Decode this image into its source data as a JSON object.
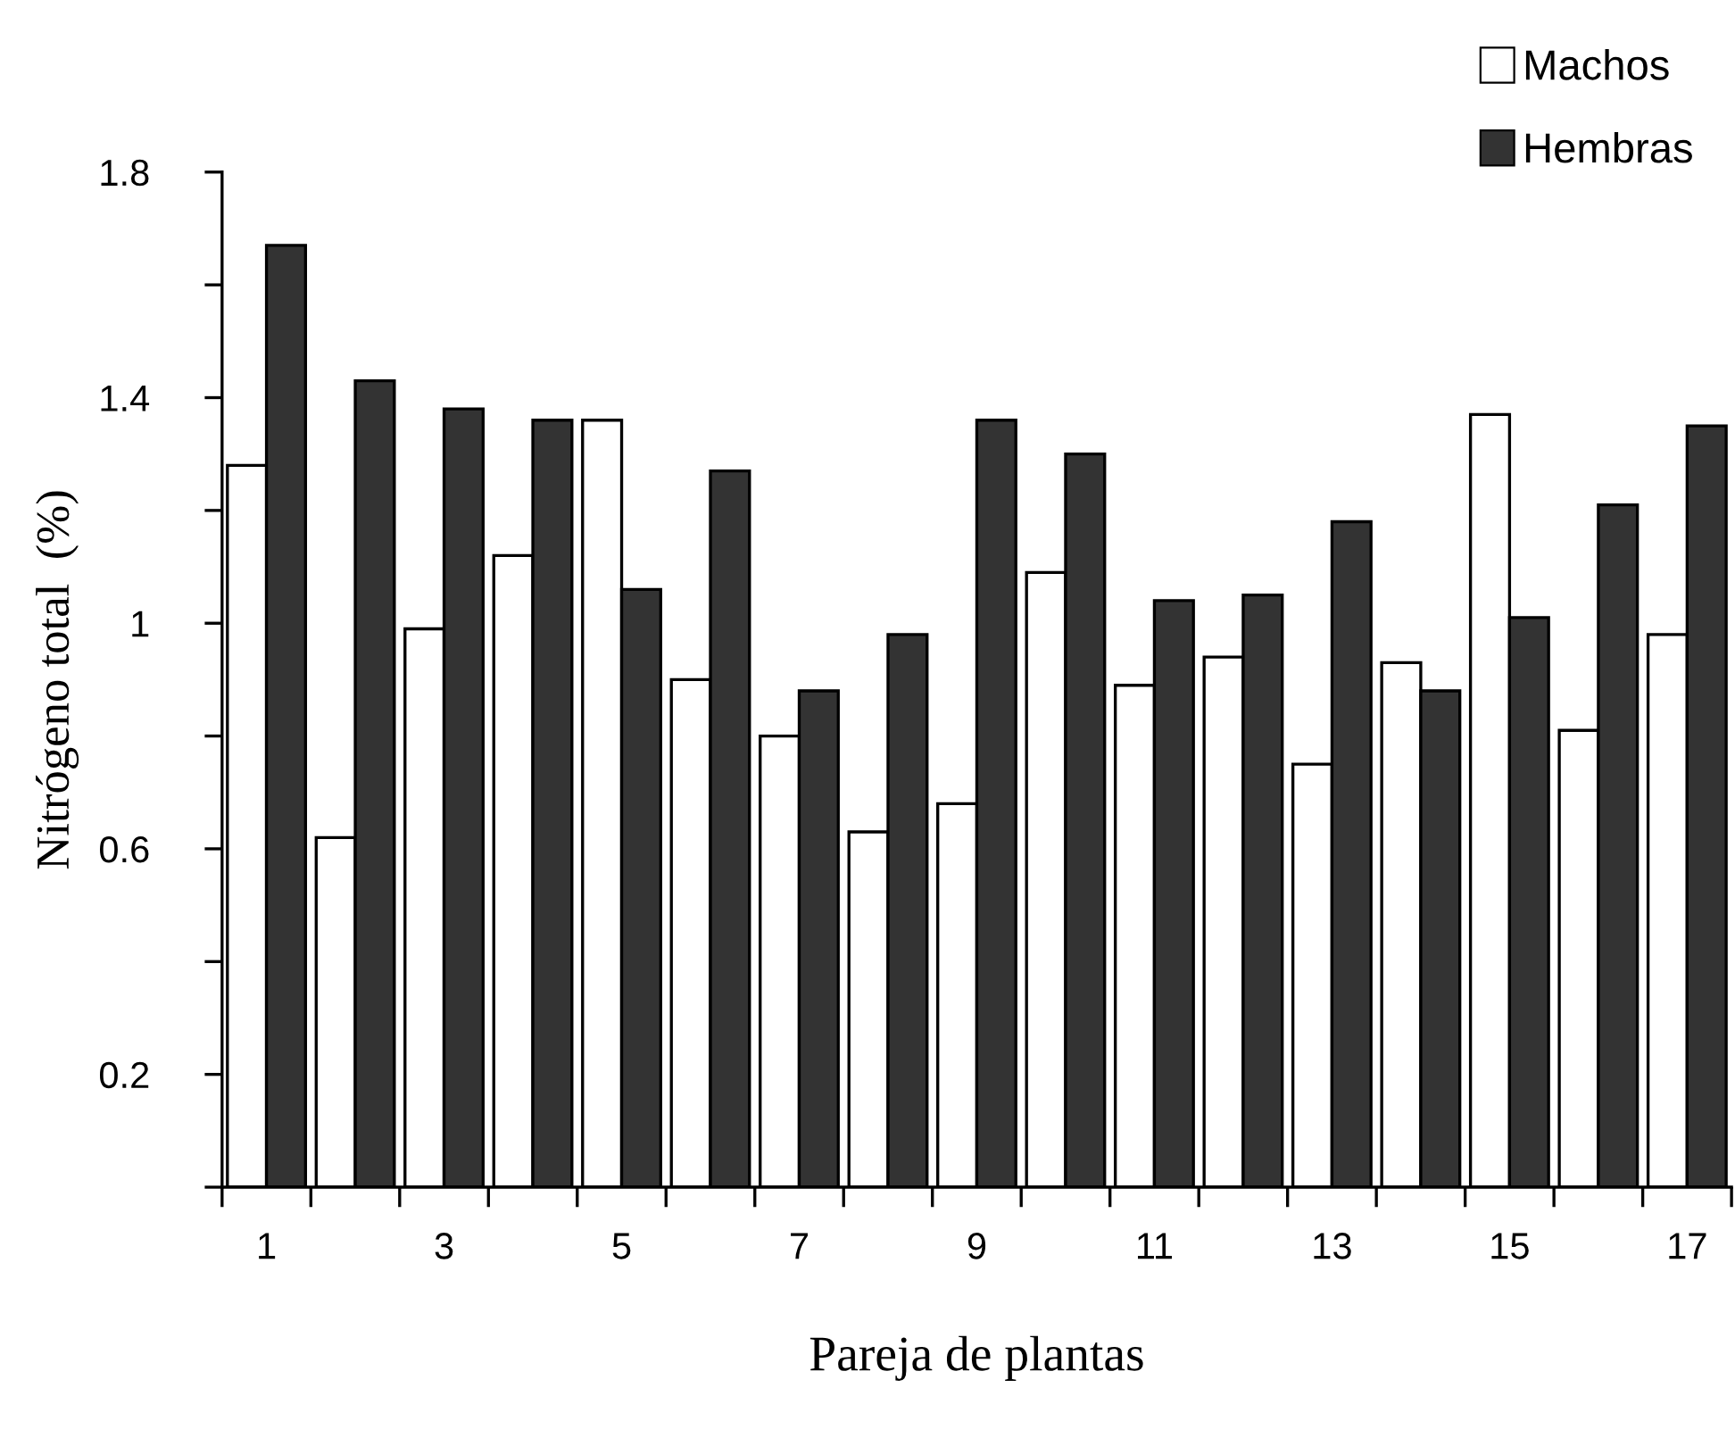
{
  "chart_data": {
    "type": "bar",
    "xlabel": "Pareja de plantas",
    "ylabel": "Nitrógeno total  (%)",
    "categories": [
      "1",
      null,
      "3",
      null,
      "5",
      null,
      "7",
      null,
      "9",
      null,
      "11",
      null,
      "13",
      null,
      "15",
      null,
      "17"
    ],
    "series": [
      {
        "name": "Machos",
        "color": "#ffffff",
        "values": [
          1.28,
          0.62,
          0.99,
          1.12,
          1.36,
          0.9,
          0.8,
          0.63,
          0.68,
          1.09,
          0.89,
          0.94,
          0.75,
          0.93,
          1.37,
          0.81,
          0.98
        ]
      },
      {
        "name": "Hembras",
        "color": "#333333",
        "values": [
          1.67,
          1.43,
          1.38,
          1.36,
          1.06,
          1.27,
          0.88,
          0.98,
          1.36,
          1.3,
          1.04,
          1.05,
          1.18,
          0.88,
          1.01,
          1.21,
          1.35
        ]
      }
    ],
    "ylim": [
      0,
      1.8
    ],
    "yticks": [
      {
        "value": 0,
        "label": null
      },
      0.2,
      {
        "value": 0.4,
        "label": null
      },
      0.6,
      {
        "value": 0.8,
        "label": null
      },
      1,
      {
        "value": 1.2,
        "label": null
      },
      1.4,
      {
        "value": 1.6,
        "label": null
      },
      1.8
    ],
    "legend": "top right",
    "grid": false
  }
}
